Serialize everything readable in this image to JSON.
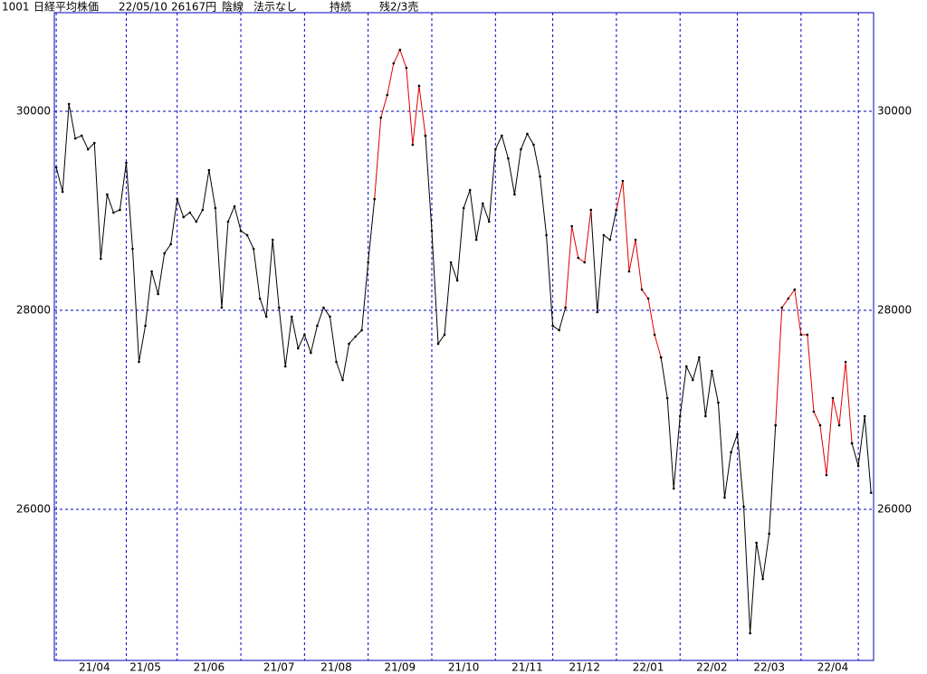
{
  "header": {
    "code": "1001",
    "name": "日経平均株価",
    "date": "22/05/10",
    "price": "26167円",
    "candle": "陰線",
    "method": "法示なし",
    "state": "持続",
    "remain": "残2/3売"
  },
  "chart_data": {
    "type": "line",
    "categories": [
      null,
      null,
      null,
      null,
      null,
      null,
      "21/04",
      null,
      null,
      null,
      null,
      null,
      null,
      null,
      "21/05",
      null,
      null,
      null,
      null,
      null,
      null,
      null,
      null,
      null,
      "21/06",
      null,
      null,
      null,
      null,
      null,
      null,
      null,
      null,
      null,
      null,
      "21/07",
      null,
      null,
      null,
      null,
      null,
      null,
      null,
      null,
      "21/08",
      null,
      null,
      null,
      null,
      null,
      null,
      null,
      null,
      null,
      "21/09",
      null,
      null,
      null,
      null,
      null,
      null,
      null,
      null,
      null,
      "21/10",
      null,
      null,
      null,
      null,
      null,
      null,
      null,
      null,
      null,
      "21/11",
      null,
      null,
      null,
      null,
      null,
      null,
      null,
      null,
      "21/12",
      null,
      null,
      null,
      null,
      null,
      null,
      null,
      null,
      null,
      "22/01",
      null,
      null,
      null,
      null,
      null,
      null,
      null,
      null,
      null,
      "22/02",
      null,
      null,
      null,
      null,
      null,
      null,
      null,
      null,
      "22/03",
      null,
      null,
      null,
      null,
      null,
      null,
      null,
      null,
      null,
      "22/04",
      null,
      null,
      null,
      null,
      null,
      null
    ],
    "series": [
      {
        "color": "#000000",
        "values": [
          29436,
          29191,
          30073,
          29727,
          29755,
          29618,
          29682,
          28518,
          29164,
          28982,
          29009,
          29482,
          28618,
          27482,
          27845,
          28391,
          28164,
          28573,
          28664,
          29118,
          28936,
          28982,
          28891,
          29009,
          29409,
          29027,
          28027,
          28891,
          29045,
          28800,
          28755,
          28618,
          28118,
          27936,
          28709,
          28027,
          27436,
          27936,
          27618,
          27755,
          27573,
          27845,
          28027,
          27936,
          27482,
          27300,
          27664,
          27736,
          27800,
          28482,
          29118,
          null,
          null,
          null,
          null,
          null,
          null,
          null,
          29755,
          28800,
          27664,
          27755,
          28482,
          28300,
          29027,
          29209,
          28709,
          29073,
          28891,
          29618,
          29755,
          29527,
          29164,
          29618,
          29773,
          29664,
          29345,
          28755,
          27845,
          27800,
          28027,
          null,
          null,
          null,
          29009,
          27982,
          28755,
          28709,
          29009,
          null,
          null,
          null,
          null,
          null,
          null,
          27527,
          27118,
          26209,
          26936,
          27436,
          27300,
          27527,
          26936,
          27391,
          27073,
          26118,
          26573,
          26755,
          26027,
          24755,
          25664,
          25300,
          25755,
          26845,
          null,
          null,
          null,
          null,
          null,
          null,
          null,
          null,
          null,
          null,
          null,
          26664,
          26436,
          26936,
          26167
        ]
      },
      {
        "color": "#e00000",
        "values": [
          null,
          null,
          null,
          null,
          null,
          null,
          null,
          null,
          null,
          null,
          null,
          null,
          null,
          null,
          null,
          null,
          null,
          null,
          null,
          null,
          null,
          null,
          null,
          null,
          null,
          null,
          null,
          null,
          null,
          null,
          null,
          null,
          null,
          null,
          null,
          null,
          null,
          null,
          null,
          null,
          null,
          null,
          null,
          null,
          null,
          null,
          null,
          null,
          null,
          null,
          29118,
          29936,
          30164,
          30482,
          30618,
          30436,
          29664,
          30255,
          29755,
          null,
          null,
          null,
          null,
          null,
          null,
          null,
          null,
          null,
          null,
          null,
          null,
          null,
          null,
          null,
          null,
          null,
          null,
          null,
          null,
          null,
          28027,
          28845,
          28527,
          28482,
          29009,
          null,
          null,
          null,
          29009,
          29300,
          28391,
          28709,
          28209,
          28118,
          27755,
          27527,
          null,
          null,
          null,
          null,
          null,
          null,
          null,
          null,
          null,
          null,
          null,
          null,
          null,
          null,
          null,
          null,
          null,
          26845,
          28027,
          28118,
          28209,
          27755,
          27755,
          26982,
          26845,
          26345,
          27118,
          26845,
          27482,
          26664,
          null,
          null,
          null
        ]
      }
    ],
    "xlim": [
      -0.3,
      128.4
    ],
    "xticks": [
      0,
      11,
      19,
      29,
      39,
      49,
      59,
      69,
      78,
      88,
      98,
      107,
      117,
      126
    ],
    "ylim": [
      24482,
      30991
    ],
    "yticks": [
      26000,
      28000,
      30000
    ],
    "grid": true
  }
}
